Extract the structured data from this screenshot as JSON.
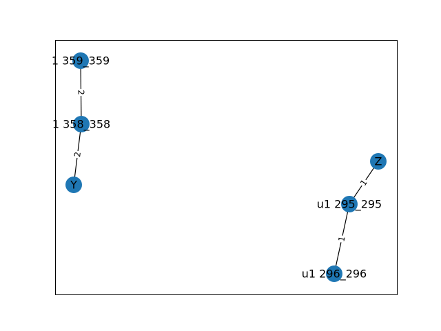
{
  "graph": {
    "node_color": "#1f77b4",
    "edge_color": "#000000",
    "frame_color": "#000000",
    "nodes": [
      {
        "id": "n359",
        "label": "1 359_359"
      },
      {
        "id": "n358",
        "label": "1 358_358"
      },
      {
        "id": "nY",
        "label": "Y"
      },
      {
        "id": "nZ",
        "label": "Z"
      },
      {
        "id": "n295",
        "label": "u1 295_295"
      },
      {
        "id": "n296",
        "label": "u1 296_296"
      }
    ],
    "edges": [
      {
        "source": "n359",
        "target": "n358",
        "weight": "2"
      },
      {
        "source": "n358",
        "target": "nY",
        "weight": "2"
      },
      {
        "source": "nZ",
        "target": "n295",
        "weight": "1"
      },
      {
        "source": "n295",
        "target": "n296",
        "weight": "1"
      }
    ]
  }
}
